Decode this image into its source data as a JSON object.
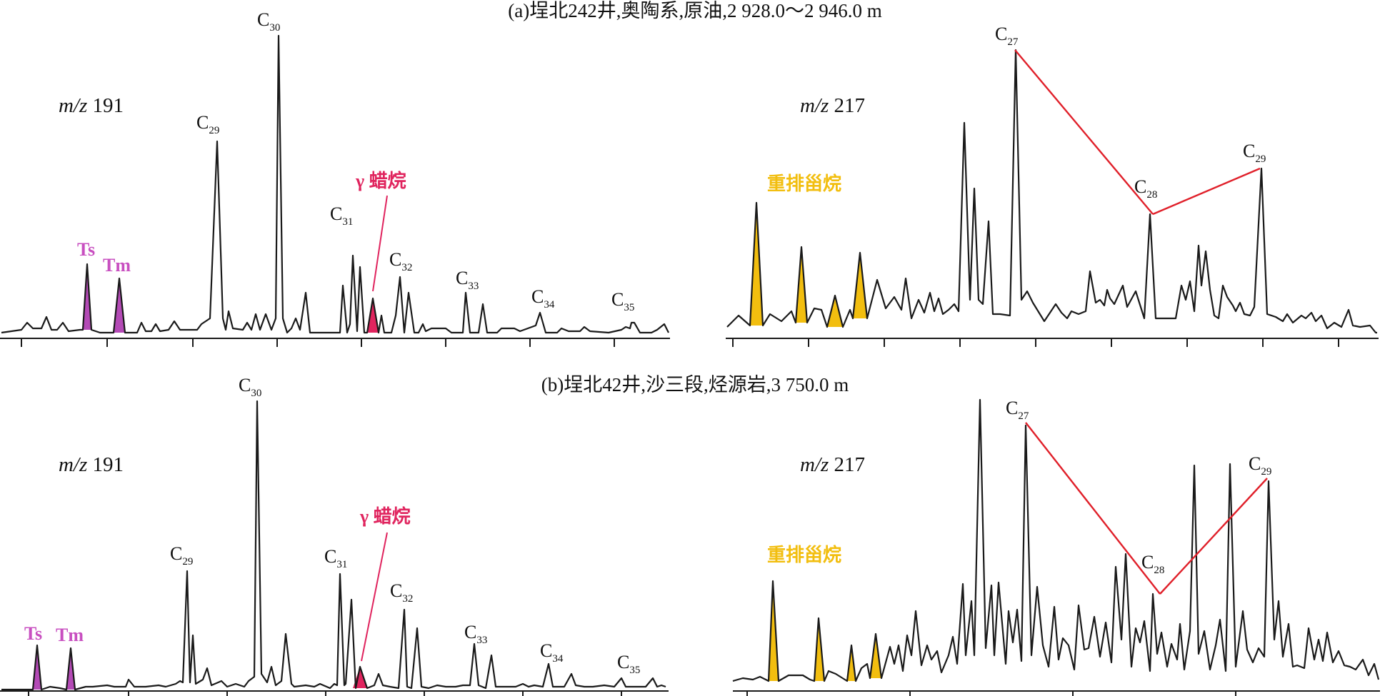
{
  "colors": {
    "trace": "#1a1a1a",
    "ts_tm_fill": "#b44ab6",
    "ts_tm_label": "#c84fc0",
    "gammacerane": "#e0245e",
    "diasterane": "#f2be0f",
    "connector": "#e0202a"
  },
  "chart_data": [
    {
      "type": "line",
      "title": "(a)埕北242井,奥陶系,原油,2 928.0～2 946.0 m",
      "panels": [
        {
          "ion_label": "m/z 191",
          "peak_labels": [
            {
              "base": "C",
              "sub": "29"
            },
            {
              "base": "C",
              "sub": "30"
            },
            {
              "base": "C",
              "sub": "31"
            },
            {
              "base": "C",
              "sub": "32"
            },
            {
              "base": "C",
              "sub": "33"
            },
            {
              "base": "C",
              "sub": "34"
            },
            {
              "base": "C",
              "sub": "35"
            }
          ],
          "annotations": {
            "ts": "Ts",
            "tm": "Tm",
            "gammacerane": "γ 蜡烷"
          }
        },
        {
          "ion_label": "m/z 217",
          "peak_labels": [
            {
              "base": "C",
              "sub": "27"
            },
            {
              "base": "C",
              "sub": "28"
            },
            {
              "base": "C",
              "sub": "29"
            }
          ],
          "annotations": {
            "diasterane": "重排甾烷"
          }
        }
      ]
    },
    {
      "type": "line",
      "title": "(b)埕北42井,沙三段,烃源岩,3 750.0 m",
      "panels": [
        {
          "ion_label": "m/z 191",
          "peak_labels": [
            {
              "base": "C",
              "sub": "29"
            },
            {
              "base": "C",
              "sub": "30"
            },
            {
              "base": "C",
              "sub": "31"
            },
            {
              "base": "C",
              "sub": "32"
            },
            {
              "base": "C",
              "sub": "33"
            },
            {
              "base": "C",
              "sub": "34"
            },
            {
              "base": "C",
              "sub": "35"
            }
          ],
          "annotations": {
            "ts": "Ts",
            "tm": "Tm",
            "gammacerane": "γ 蜡烷"
          }
        },
        {
          "ion_label": "m/z 217",
          "peak_labels": [
            {
              "base": "C",
              "sub": "27"
            },
            {
              "base": "C",
              "sub": "28"
            },
            {
              "base": "C",
              "sub": "29"
            }
          ],
          "annotations": {
            "diasterane": "重排甾烷"
          }
        }
      ]
    }
  ]
}
